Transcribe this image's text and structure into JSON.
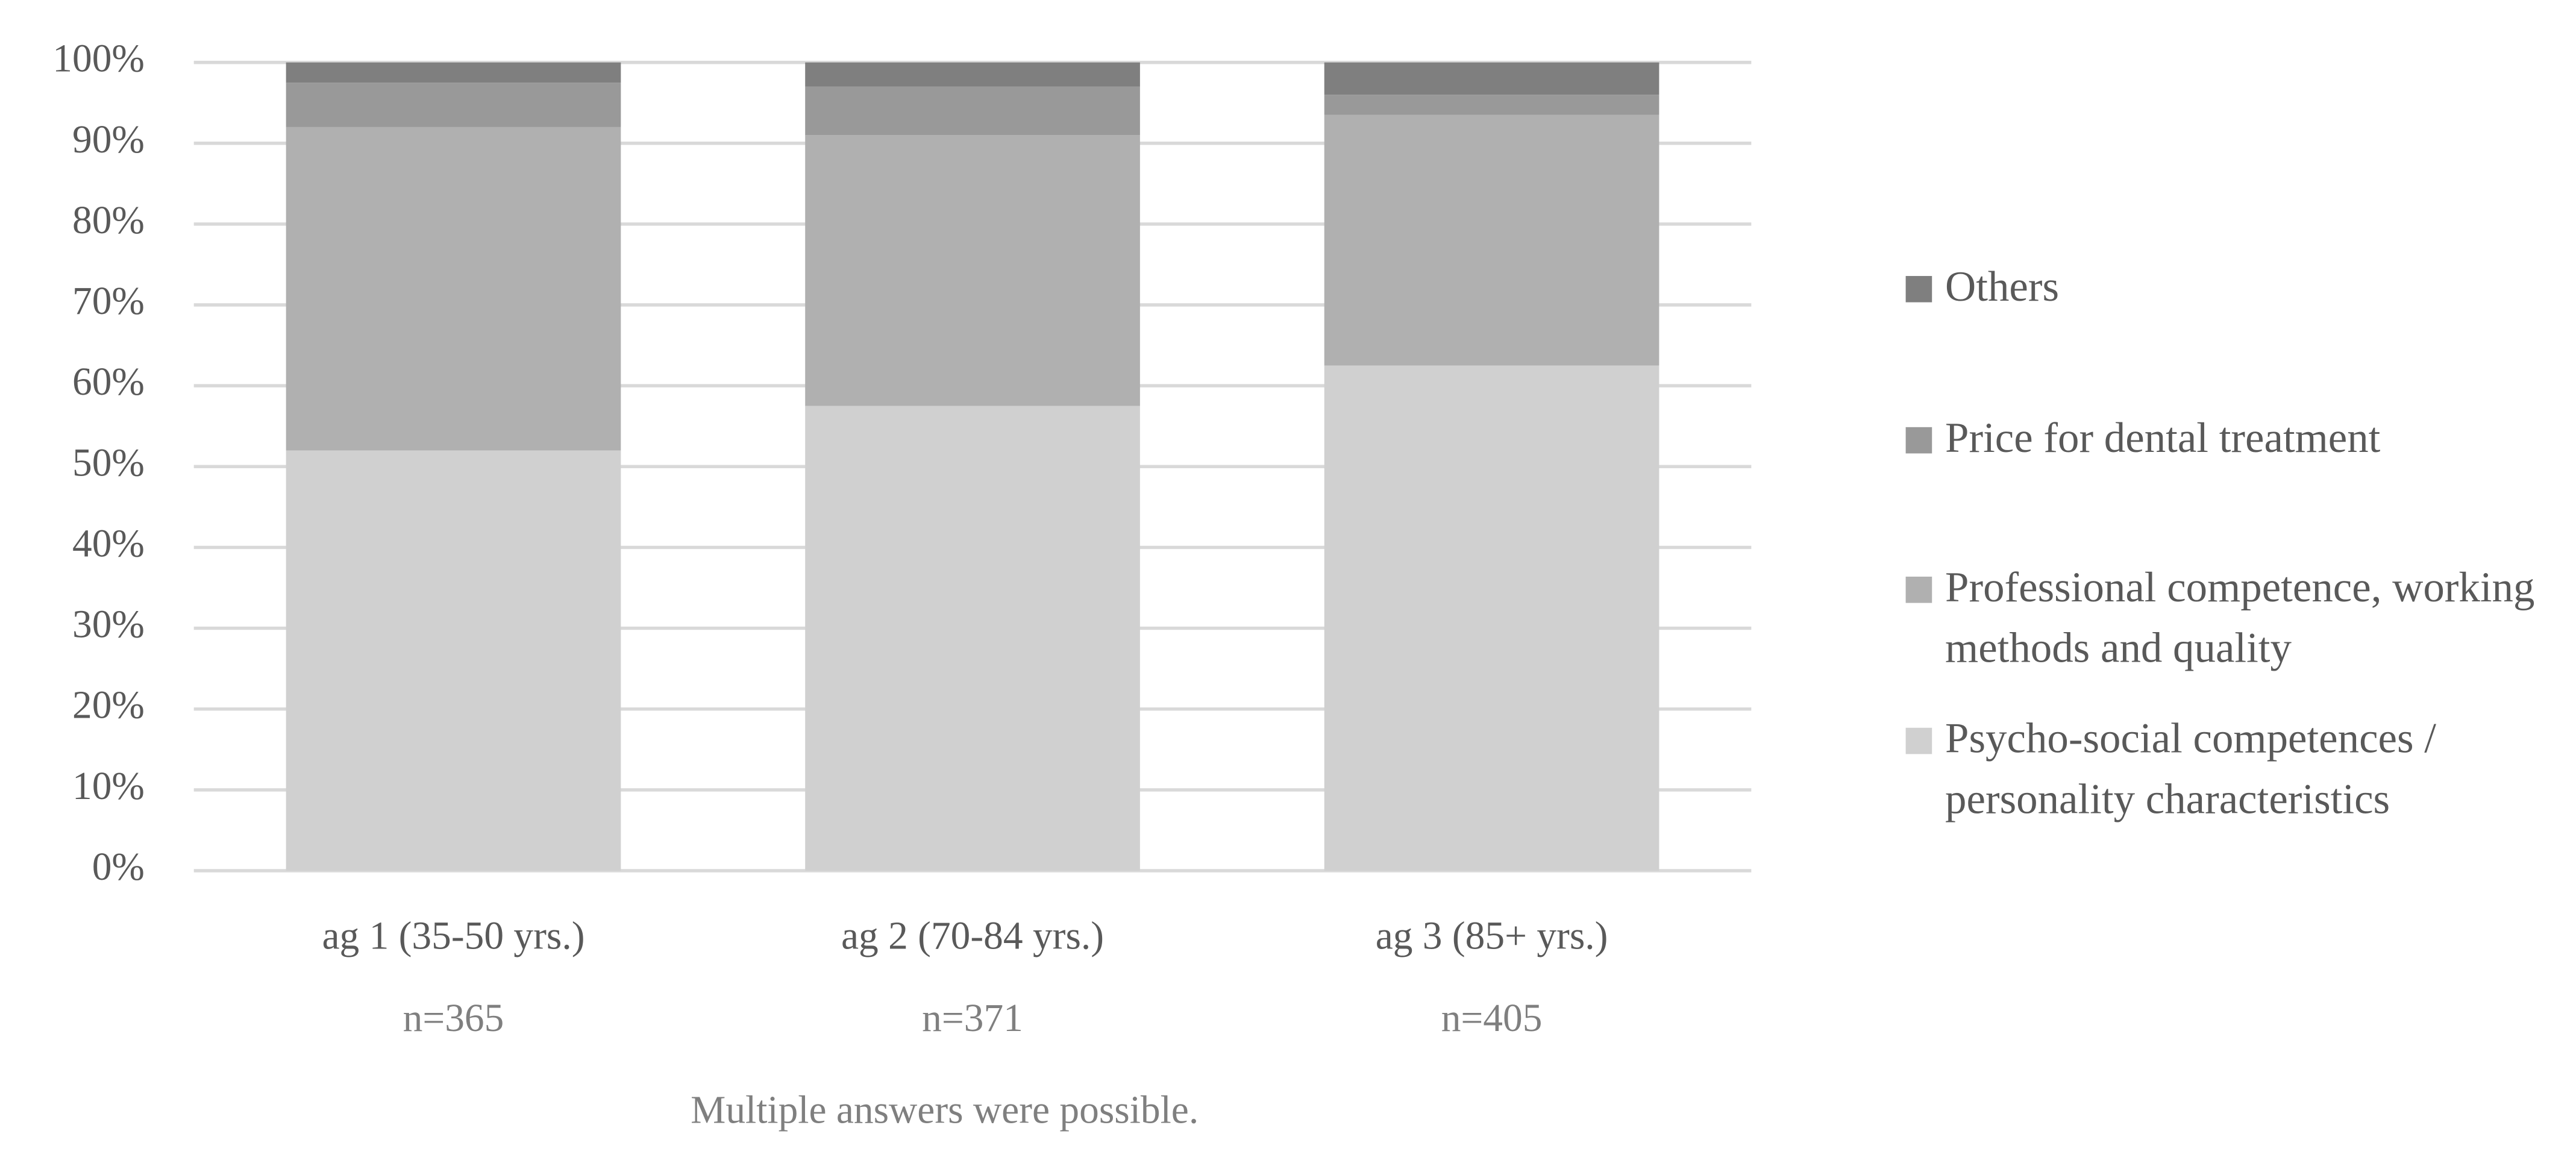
{
  "chart_data": {
    "type": "stacked_bar",
    "categories": [
      "ag 1 (35-50 yrs.)",
      "ag 2 (70-84 yrs.)",
      "ag 3 (85+ yrs.)"
    ],
    "sample_sizes": [
      "n=365",
      "n=371",
      "n=405"
    ],
    "note": "Multiple answers were possible.",
    "series": [
      {
        "name": "Psycho-social competences / personality characteristics",
        "color": "#d0d0d0",
        "values": [
          52,
          57.5,
          62.5
        ]
      },
      {
        "name": "Professional competence, working methods and quality",
        "color": "#b0b0b0",
        "values": [
          40,
          33.5,
          31
        ]
      },
      {
        "name": "Price for dental treatment",
        "color": "#999999",
        "values": [
          5.5,
          6,
          2.5
        ]
      },
      {
        "name": "Others",
        "color": "#7f7f7f",
        "values": [
          2.5,
          3,
          4
        ]
      }
    ],
    "ylim": [
      0,
      100
    ],
    "yticks": [
      {
        "value": 0,
        "label": "0%"
      },
      {
        "value": 10,
        "label": "10%"
      },
      {
        "value": 20,
        "label": "20%"
      },
      {
        "value": 30,
        "label": "30%"
      },
      {
        "value": 40,
        "label": "40%"
      },
      {
        "value": 50,
        "label": "50%"
      },
      {
        "value": 60,
        "label": "60%"
      },
      {
        "value": 70,
        "label": "70%"
      },
      {
        "value": 80,
        "label": "80%"
      },
      {
        "value": 90,
        "label": "90%"
      },
      {
        "value": 100,
        "label": "100%"
      }
    ],
    "grid": true,
    "legend": "right"
  }
}
